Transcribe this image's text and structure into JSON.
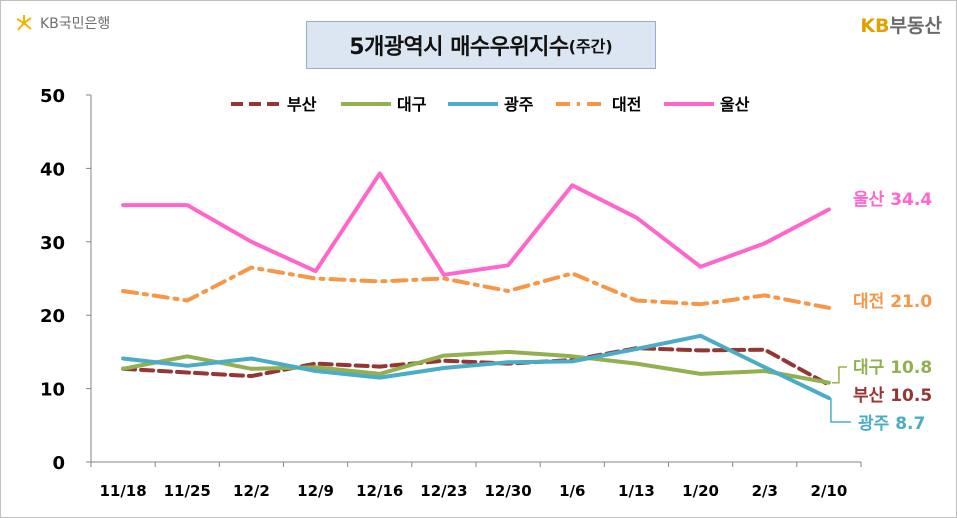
{
  "brand_left": "KB국민은행",
  "brand_right": {
    "kb": "KB",
    "name": "부동산"
  },
  "chart_data": {
    "type": "line",
    "title": "5개광역시 매수우위지수",
    "title_suffix": "(주간)",
    "categories": [
      "11/18",
      "11/25",
      "12/2",
      "12/9",
      "12/16",
      "12/23",
      "12/30",
      "1/6",
      "1/13",
      "1/20",
      "2/3",
      "2/10"
    ],
    "ylim": [
      0,
      50
    ],
    "yticks": [
      0,
      10,
      20,
      30,
      40,
      50
    ],
    "grid": false,
    "legend_position": "top",
    "series": [
      {
        "name": "부산",
        "color": "#943634",
        "style": "dashed",
        "values": [
          12.7,
          12.2,
          11.7,
          13.4,
          13.0,
          13.8,
          13.4,
          13.9,
          15.5,
          15.2,
          15.3,
          10.5
        ],
        "end_label": "부산 10.5"
      },
      {
        "name": "대구",
        "color": "#92b050",
        "style": "solid",
        "values": [
          12.7,
          14.4,
          12.7,
          12.9,
          12.0,
          14.5,
          15.0,
          14.4,
          13.4,
          12.0,
          12.4,
          10.8
        ],
        "end_label": "대구 10.8"
      },
      {
        "name": "광주",
        "color": "#4bacc6",
        "style": "solid",
        "values": [
          14.1,
          13.1,
          14.1,
          12.4,
          11.5,
          12.8,
          13.6,
          13.7,
          15.4,
          17.2,
          12.9,
          8.7
        ],
        "end_label": "광주 8.7"
      },
      {
        "name": "대전",
        "color": "#f79646",
        "style": "dashdot",
        "values": [
          23.3,
          22.0,
          26.5,
          25.0,
          24.6,
          25.0,
          23.3,
          25.7,
          22.0,
          21.5,
          22.7,
          21.0
        ],
        "end_label": "대전 21.0"
      },
      {
        "name": "울산",
        "color": "#ff66cc",
        "style": "solid",
        "values": [
          35.0,
          35.0,
          30.0,
          26.0,
          39.3,
          25.5,
          26.8,
          37.7,
          33.3,
          26.6,
          29.8,
          34.4
        ],
        "end_label": "울산 34.4"
      }
    ]
  }
}
